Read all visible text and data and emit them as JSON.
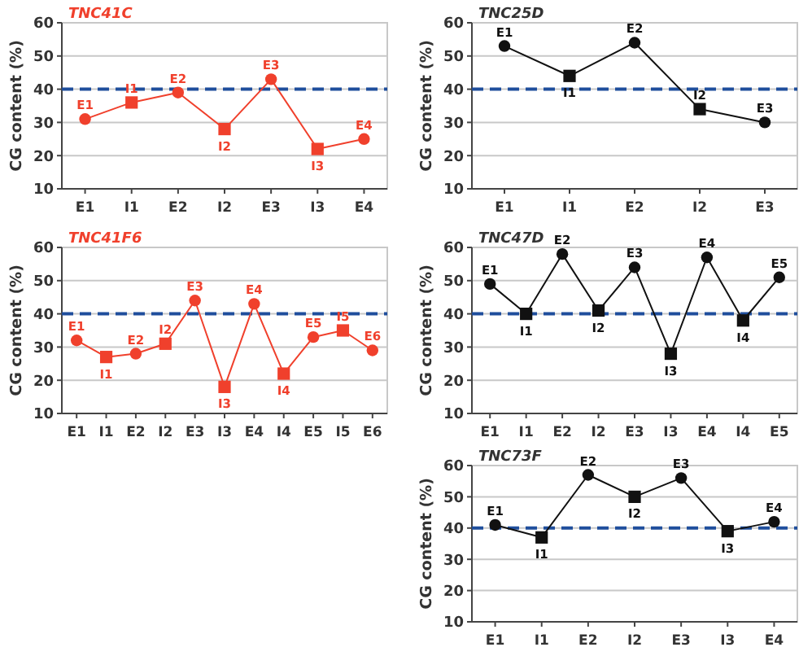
{
  "chart_data": [
    {
      "type": "line",
      "title": "TNC41C",
      "ylabel": "CG content (%)",
      "categories": [
        "E1",
        "I1",
        "E2",
        "I2",
        "E3",
        "I3",
        "E4"
      ],
      "ylim": [
        10,
        60
      ],
      "yticks": [
        10,
        20,
        30,
        40,
        50,
        60
      ],
      "grid": "y",
      "ref_lines": [
        {
          "axis": "y",
          "value": 40,
          "color": "#1f4e9c",
          "line_style": "dashed"
        }
      ],
      "series": [
        {
          "type": "line",
          "marker": "none",
          "color": "#f0402c",
          "values": [
            31,
            36,
            39,
            28,
            43,
            22,
            25
          ]
        },
        {
          "type": "scatter",
          "marker": "circle",
          "color": "#f0402c",
          "x": [
            "E1",
            "E2",
            "E3",
            "E4"
          ],
          "values": [
            31,
            39,
            43,
            25
          ]
        },
        {
          "type": "scatter",
          "marker": "square",
          "color": "#f0402c",
          "x": [
            "I1",
            "I2",
            "I3"
          ],
          "values": [
            36,
            28,
            22
          ]
        }
      ],
      "annotations": [
        {
          "text": "E1",
          "x": "E1",
          "y": 31
        },
        {
          "text": "I1",
          "x": "I1",
          "y": 36
        },
        {
          "text": "E2",
          "x": "E2",
          "y": 39
        },
        {
          "text": "I2",
          "x": "I2",
          "y": 28
        },
        {
          "text": "E3",
          "x": "E3",
          "y": 43
        },
        {
          "text": "I3",
          "x": "I3",
          "y": 22
        },
        {
          "text": "E4",
          "x": "E4",
          "y": 25
        }
      ]
    },
    {
      "type": "line",
      "title": "TNC25D",
      "ylabel": "CG content (%)",
      "categories": [
        "E1",
        "I1",
        "E2",
        "I2",
        "E3"
      ],
      "ylim": [
        10,
        60
      ],
      "yticks": [
        10,
        20,
        30,
        40,
        50,
        60
      ],
      "grid": "y",
      "ref_lines": [
        {
          "axis": "y",
          "value": 40,
          "color": "#1f4e9c",
          "line_style": "dashed"
        }
      ],
      "series": [
        {
          "type": "line",
          "marker": "none",
          "color": "#111111",
          "values": [
            53,
            44,
            54,
            34,
            30
          ]
        },
        {
          "type": "scatter",
          "marker": "circle",
          "color": "#111111",
          "x": [
            "E1",
            "E2",
            "E3"
          ],
          "values": [
            53,
            54,
            30
          ]
        },
        {
          "type": "scatter",
          "marker": "square",
          "color": "#111111",
          "x": [
            "I1",
            "I2"
          ],
          "values": [
            44,
            34
          ]
        }
      ],
      "annotations": [
        {
          "text": "E1",
          "x": "E1",
          "y": 53
        },
        {
          "text": "I1",
          "x": "I1",
          "y": 44
        },
        {
          "text": "E2",
          "x": "E2",
          "y": 54
        },
        {
          "text": "I2",
          "x": "I2",
          "y": 34
        },
        {
          "text": "E3",
          "x": "E3",
          "y": 30
        }
      ]
    },
    {
      "type": "line",
      "title": "TNC41F6",
      "ylabel": "CG content (%)",
      "categories": [
        "E1",
        "I1",
        "E2",
        "I2",
        "E3",
        "I3",
        "E4",
        "I4",
        "E5",
        "I5",
        "E6"
      ],
      "ylim": [
        10,
        60
      ],
      "yticks": [
        10,
        20,
        30,
        40,
        50,
        60
      ],
      "grid": "y",
      "ref_lines": [
        {
          "axis": "y",
          "value": 40,
          "color": "#1f4e9c",
          "line_style": "dashed"
        }
      ],
      "series": [
        {
          "type": "line",
          "marker": "none",
          "color": "#f0402c",
          "values": [
            32,
            27,
            28,
            31,
            44,
            18,
            43,
            22,
            33,
            35,
            29
          ]
        },
        {
          "type": "scatter",
          "marker": "circle",
          "color": "#f0402c",
          "x": [
            "E1",
            "E2",
            "E3",
            "E4",
            "E5",
            "E6"
          ],
          "values": [
            32,
            28,
            44,
            43,
            33,
            29
          ]
        },
        {
          "type": "scatter",
          "marker": "square",
          "color": "#f0402c",
          "x": [
            "I1",
            "I2",
            "I3",
            "I4",
            "I5"
          ],
          "values": [
            27,
            31,
            18,
            22,
            35
          ]
        }
      ],
      "annotations": [
        {
          "text": "E1",
          "x": "E1",
          "y": 32
        },
        {
          "text": "I1",
          "x": "I1",
          "y": 27
        },
        {
          "text": "E2",
          "x": "E2",
          "y": 28
        },
        {
          "text": "I2",
          "x": "I2",
          "y": 31
        },
        {
          "text": "E3",
          "x": "E3",
          "y": 44
        },
        {
          "text": "I3",
          "x": "I3",
          "y": 18
        },
        {
          "text": "E4",
          "x": "E4",
          "y": 43
        },
        {
          "text": "I4",
          "x": "I4",
          "y": 22
        },
        {
          "text": "E5",
          "x": "E5",
          "y": 33
        },
        {
          "text": "I5",
          "x": "I5",
          "y": 35
        },
        {
          "text": "E6",
          "x": "E6",
          "y": 29
        }
      ]
    },
    {
      "type": "line",
      "title": "TNC47D",
      "ylabel": "CG content (%)",
      "categories": [
        "E1",
        "I1",
        "E2",
        "I2",
        "E3",
        "I3",
        "E4",
        "I4",
        "E5"
      ],
      "ylim": [
        10,
        60
      ],
      "yticks": [
        10,
        20,
        30,
        40,
        50,
        60
      ],
      "grid": "y",
      "ref_lines": [
        {
          "axis": "y",
          "value": 40,
          "color": "#1f4e9c",
          "line_style": "dashed"
        }
      ],
      "series": [
        {
          "type": "line",
          "marker": "none",
          "color": "#111111",
          "values": [
            49,
            40,
            58,
            41,
            54,
            28,
            57,
            38,
            51
          ]
        },
        {
          "type": "scatter",
          "marker": "circle",
          "color": "#111111",
          "x": [
            "E1",
            "E2",
            "E3",
            "E4",
            "E5"
          ],
          "values": [
            49,
            58,
            54,
            57,
            51
          ]
        },
        {
          "type": "scatter",
          "marker": "square",
          "color": "#111111",
          "x": [
            "I1",
            "I2",
            "I3",
            "I4"
          ],
          "values": [
            40,
            41,
            28,
            38
          ]
        }
      ],
      "annotations": [
        {
          "text": "E1",
          "x": "E1",
          "y": 49
        },
        {
          "text": "I1",
          "x": "I1",
          "y": 40
        },
        {
          "text": "E2",
          "x": "E2",
          "y": 58
        },
        {
          "text": "I2",
          "x": "I2",
          "y": 41
        },
        {
          "text": "E3",
          "x": "E3",
          "y": 54
        },
        {
          "text": "I3",
          "x": "I3",
          "y": 28
        },
        {
          "text": "E4",
          "x": "E4",
          "y": 57
        },
        {
          "text": "I4",
          "x": "I4",
          "y": 38
        },
        {
          "text": "E5",
          "x": "E5",
          "y": 51
        }
      ]
    },
    {
      "type": "line",
      "title": "TNC73F",
      "ylabel": "CG content (%)",
      "categories": [
        "E1",
        "I1",
        "E2",
        "I2",
        "E3",
        "I3",
        "E4"
      ],
      "ylim": [
        10,
        60
      ],
      "yticks": [
        10,
        20,
        30,
        40,
        50,
        60
      ],
      "grid": "y",
      "ref_lines": [
        {
          "axis": "y",
          "value": 40,
          "color": "#1f4e9c",
          "line_style": "dashed"
        }
      ],
      "series": [
        {
          "type": "line",
          "marker": "none",
          "color": "#111111",
          "values": [
            41,
            37,
            57,
            50,
            56,
            39,
            42
          ]
        },
        {
          "type": "scatter",
          "marker": "circle",
          "color": "#111111",
          "x": [
            "E1",
            "E2",
            "E3",
            "E4"
          ],
          "values": [
            41,
            57,
            56,
            42
          ]
        },
        {
          "type": "scatter",
          "marker": "square",
          "color": "#111111",
          "x": [
            "I1",
            "I2",
            "I3"
          ],
          "values": [
            37,
            50,
            39
          ]
        }
      ],
      "annotations": [
        {
          "text": "E1",
          "x": "E1",
          "y": 41
        },
        {
          "text": "I1",
          "x": "I1",
          "y": 37
        },
        {
          "text": "E2",
          "x": "E2",
          "y": 57
        },
        {
          "text": "I2",
          "x": "I2",
          "y": 50
        },
        {
          "text": "E3",
          "x": "E3",
          "y": 56
        },
        {
          "text": "I3",
          "x": "I3",
          "y": 39
        },
        {
          "text": "E4",
          "x": "E4",
          "y": 42
        }
      ]
    }
  ]
}
